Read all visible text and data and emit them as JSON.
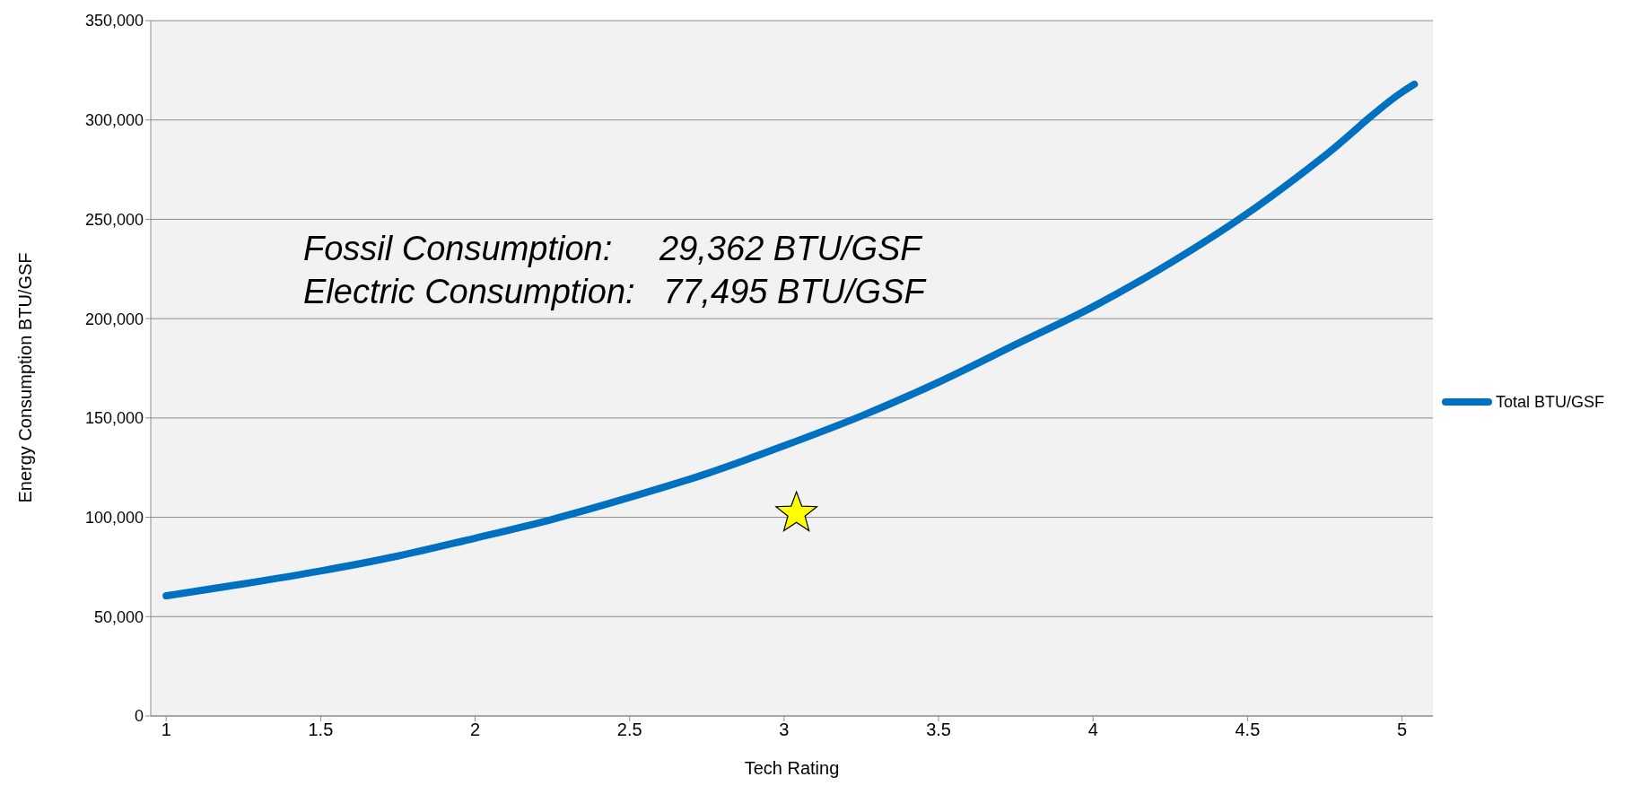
{
  "chart_data": {
    "type": "line",
    "xlabel": "Tech Rating",
    "ylabel": "Energy Consumption BTU/GSF",
    "xlim": [
      0.95,
      5.1
    ],
    "xticks": [
      1,
      1.5,
      2,
      2.5,
      3,
      3.5,
      4,
      4.5,
      5
    ],
    "ylim": [
      0,
      350000
    ],
    "yticks": [
      0,
      {
        "value": 50000,
        "label": "50,000"
      },
      {
        "value": 100000,
        "label": "100,000"
      },
      {
        "value": 150000,
        "label": "150,000"
      },
      {
        "value": 200000,
        "label": "200,000"
      },
      {
        "value": 250000,
        "label": "250,000"
      },
      {
        "value": 300000,
        "label": "300,000"
      },
      {
        "value": 350000,
        "label": "350,000"
      }
    ],
    "grid": "y",
    "legend": "right",
    "annotations": [
      "Fossil Consumption:     29,362 BTU/GSF",
      "Electric Consumption:   77,495 BTU/GSF"
    ],
    "series": [
      {
        "name": "Total BTU/GSF",
        "type": "line",
        "color": "#0070c0",
        "marker": "none",
        "line_style": "solid",
        "x": [
          1,
          1.25,
          1.5,
          1.75,
          2,
          2.25,
          2.5,
          2.75,
          3,
          3.25,
          3.5,
          3.75,
          4,
          4.25,
          4.5,
          4.75,
          5,
          5.04
        ],
        "values": [
          60500,
          66500,
          73000,
          80500,
          89500,
          99000,
          110000,
          122000,
          136000,
          151000,
          168000,
          187000,
          206000,
          228000,
          253000,
          282000,
          314000,
          318000
        ]
      },
      {
        "type": "scatter",
        "color": "#ffff00",
        "marker": "star",
        "x": [
          3.04
        ],
        "values": [
          102000
        ]
      }
    ]
  }
}
